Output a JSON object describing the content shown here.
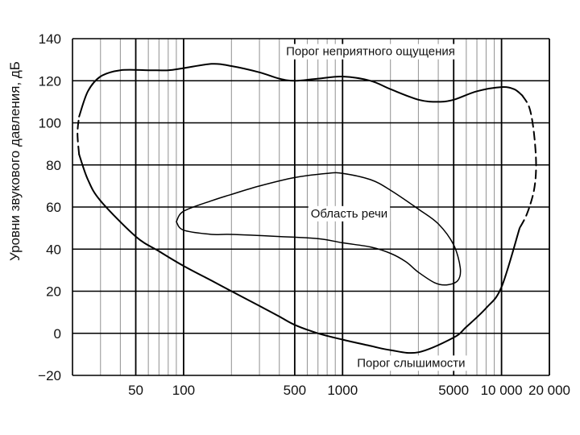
{
  "chart_data": {
    "type": "line",
    "xscale": "log",
    "xlim": [
      20,
      20000
    ],
    "ylim": [
      -20,
      140
    ],
    "grid": true,
    "ylabel": "Уровни звукового давления, дБ",
    "yticks": [
      -20,
      0,
      20,
      40,
      60,
      80,
      100,
      120,
      140
    ],
    "ytick_labels": [
      "−20",
      "0",
      "20",
      "40",
      "60",
      "80",
      "100",
      "120",
      "140"
    ],
    "xticks": [
      50,
      100,
      500,
      1000,
      5000,
      10000,
      20000
    ],
    "xtick_labels": [
      "50",
      "100",
      "500",
      "1000",
      "5000",
      "10 000",
      "20 000"
    ],
    "annotations": [
      {
        "text": "Порог неприятного ощущения",
        "x": 1500,
        "y": 134
      },
      {
        "text": "Область речи",
        "x": 1100,
        "y": 57
      },
      {
        "text": "Порог слышимости",
        "x": 2700,
        "y": -14
      }
    ],
    "series": [
      {
        "key": "discomfort",
        "x": [
          22,
          25,
          30,
          40,
          60,
          80,
          100,
          150,
          200,
          300,
          400,
          500,
          700,
          1000,
          1500,
          2000,
          3000,
          4000,
          5000,
          7000,
          10000,
          12000,
          13500
        ],
        "y": [
          103,
          115,
          122,
          125,
          125,
          125,
          126,
          128,
          127,
          124,
          121,
          120,
          121,
          122,
          120,
          116,
          111,
          110,
          111,
          115,
          117,
          116,
          113
        ]
      },
      {
        "key": "discomfort_dashed",
        "x": [
          13500,
          15000,
          16000,
          16500,
          16000,
          14500,
          13000
        ],
        "y": [
          113,
          107,
          95,
          80,
          68,
          57,
          50
        ]
      },
      {
        "key": "threshold",
        "x": [
          13000,
          10000,
          8000,
          6000,
          5000,
          3000,
          2000,
          1500,
          1000,
          700,
          500,
          400,
          300,
          200,
          150,
          100,
          70,
          50,
          30,
          25,
          22
        ],
        "y": [
          50,
          22,
          12,
          3,
          -2,
          -9,
          -8,
          -6,
          -3,
          0,
          4,
          8,
          13,
          20,
          25,
          32,
          39,
          46,
          63,
          73,
          85
        ]
      },
      {
        "key": "threshold_dashed",
        "x": [
          22,
          21.5,
          22
        ],
        "y": [
          85,
          95,
          103
        ]
      },
      {
        "key": "speech",
        "x": [
          90,
          100,
          150,
          200,
          300,
          500,
          800,
          1000,
          1500,
          2000,
          3000,
          4000,
          5000,
          5500,
          5300,
          4500,
          3800,
          3000,
          2500,
          2000,
          1500,
          1000,
          700,
          400,
          200,
          150,
          100,
          90
        ],
        "y": [
          53,
          58,
          63,
          66,
          70,
          74,
          76,
          76,
          73,
          68,
          59,
          52,
          42,
          31,
          25,
          23,
          24,
          29,
          34,
          38,
          41,
          43,
          45,
          46,
          47,
          47,
          49,
          53
        ]
      }
    ]
  }
}
